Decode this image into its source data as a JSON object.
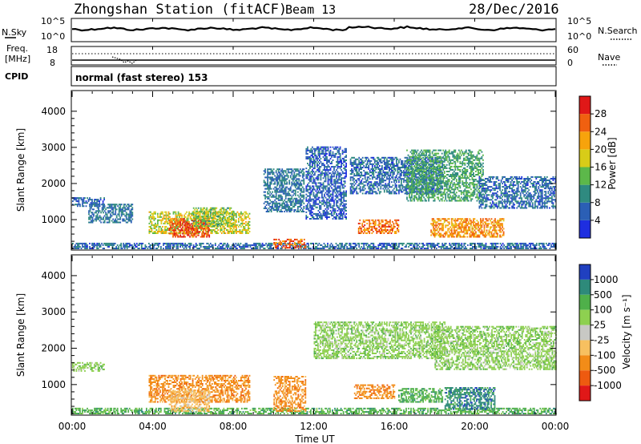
{
  "header": {
    "station": "Zhongshan Station (fitACF)",
    "beam": "Beam 13",
    "date": "28/Dec/2016"
  },
  "noise_panel": {
    "left_label": "N.Sky",
    "right_label": "N.Search",
    "left_ticks": [
      "10^5",
      "10^0"
    ],
    "right_ticks": [
      "10^5",
      "10^0"
    ]
  },
  "freq_panel": {
    "left_label_top": "Freq.",
    "left_label_bottom": "[MHz]",
    "left_ticks": [
      "18",
      "8"
    ],
    "right_label": "Nave",
    "right_ticks": [
      "60",
      "0"
    ]
  },
  "cpid": {
    "label": "CPID",
    "mode": "normal (fast stereo) 153"
  },
  "chart_data": [
    {
      "type": "heatmap",
      "name": "power",
      "ylabel": "Slant Range [km]",
      "ylim": [
        180,
        4550
      ],
      "xlim": [
        0,
        24
      ],
      "x_ticks": [
        "00:00",
        "04:00",
        "08:00",
        "12:00",
        "16:00",
        "20:00",
        "00:00"
      ],
      "y_ticks": [
        "1000",
        "2000",
        "3000",
        "4000"
      ],
      "colorbar": {
        "label": "Power [dB]",
        "range": [
          0,
          32
        ],
        "ticks": [
          "4",
          "8",
          "12",
          "16",
          "20",
          "24",
          "28"
        ],
        "colors": [
          "#1e2ee0",
          "#2b5fb5",
          "#2f8a80",
          "#5cb84a",
          "#d8cc18",
          "#f7a30c",
          "#f06010",
          "#e01818"
        ]
      },
      "patches": [
        {
          "t": [
            0.0,
            1.6
          ],
          "r": [
            1350,
            1600
          ],
          "v": 6
        },
        {
          "t": [
            0.0,
            24.0
          ],
          "r": [
            180,
            320
          ],
          "v": 7
        },
        {
          "t": [
            0.8,
            3.0
          ],
          "r": [
            900,
            1400
          ],
          "v": 8
        },
        {
          "t": [
            3.8,
            8.8
          ],
          "r": [
            600,
            1200
          ],
          "v": 18
        },
        {
          "t": [
            4.8,
            6.8
          ],
          "r": [
            500,
            1000
          ],
          "v": 27
        },
        {
          "t": [
            6.0,
            8.0
          ],
          "r": [
            800,
            1300
          ],
          "v": 15
        },
        {
          "t": [
            9.5,
            11.5
          ],
          "r": [
            1200,
            2400
          ],
          "v": 8
        },
        {
          "t": [
            10.0,
            11.6
          ],
          "r": [
            200,
            450
          ],
          "v": 26
        },
        {
          "t": [
            11.6,
            13.6
          ],
          "r": [
            1000,
            3000
          ],
          "v": 6
        },
        {
          "t": [
            13.8,
            18.4
          ],
          "r": [
            1700,
            2700
          ],
          "v": 7
        },
        {
          "t": [
            14.2,
            16.2
          ],
          "r": [
            600,
            1000
          ],
          "v": 25
        },
        {
          "t": [
            16.6,
            20.4
          ],
          "r": [
            1500,
            2900
          ],
          "v": 12
        },
        {
          "t": [
            17.8,
            21.4
          ],
          "r": [
            500,
            1000
          ],
          "v": 23
        },
        {
          "t": [
            20.2,
            24.0
          ],
          "r": [
            1300,
            2200
          ],
          "v": 7
        }
      ]
    },
    {
      "type": "heatmap",
      "name": "velocity",
      "ylabel": "Slant Range [km]",
      "ylim": [
        180,
        4550
      ],
      "xlim": [
        0,
        24
      ],
      "xlabel": "Time UT",
      "x_ticks": [
        "00:00",
        "04:00",
        "08:00",
        "12:00",
        "16:00",
        "20:00",
        "00:00"
      ],
      "y_ticks": [
        "1000",
        "2000",
        "3000",
        "4000"
      ],
      "colorbar": {
        "label": "Velocity [m s⁻¹]",
        "ticks": [
          "1000",
          "500",
          "100",
          "25",
          "-25",
          "-100",
          "-500",
          "-1000"
        ],
        "colors": [
          "#2040c0",
          "#2e8a7a",
          "#4fb04a",
          "#8ed050",
          "#c8c8c4",
          "#f7c060",
          "#f28c18",
          "#ee5a10",
          "#e01818"
        ]
      },
      "patches": [
        {
          "t": [
            0.0,
            1.6
          ],
          "r": [
            1350,
            1600
          ],
          "v": "25"
        },
        {
          "t": [
            0.0,
            24.0
          ],
          "r": [
            180,
            320
          ],
          "v": "100"
        },
        {
          "t": [
            3.8,
            8.8
          ],
          "r": [
            500,
            1250
          ],
          "v": "-500"
        },
        {
          "t": [
            4.8,
            6.8
          ],
          "r": [
            250,
            800
          ],
          "v": "-100"
        },
        {
          "t": [
            10.0,
            11.6
          ],
          "r": [
            250,
            1200
          ],
          "v": "-500"
        },
        {
          "t": [
            12.0,
            18.5
          ],
          "r": [
            1700,
            2700
          ],
          "v": "25"
        },
        {
          "t": [
            14.0,
            16.0
          ],
          "r": [
            600,
            1000
          ],
          "v": "-500"
        },
        {
          "t": [
            16.2,
            18.4
          ],
          "r": [
            500,
            900
          ],
          "v": "100"
        },
        {
          "t": [
            18.5,
            21.0
          ],
          "r": [
            300,
            900
          ],
          "v": "500"
        },
        {
          "t": [
            18.0,
            24.0
          ],
          "r": [
            1400,
            2600
          ],
          "v": "25"
        }
      ]
    }
  ]
}
